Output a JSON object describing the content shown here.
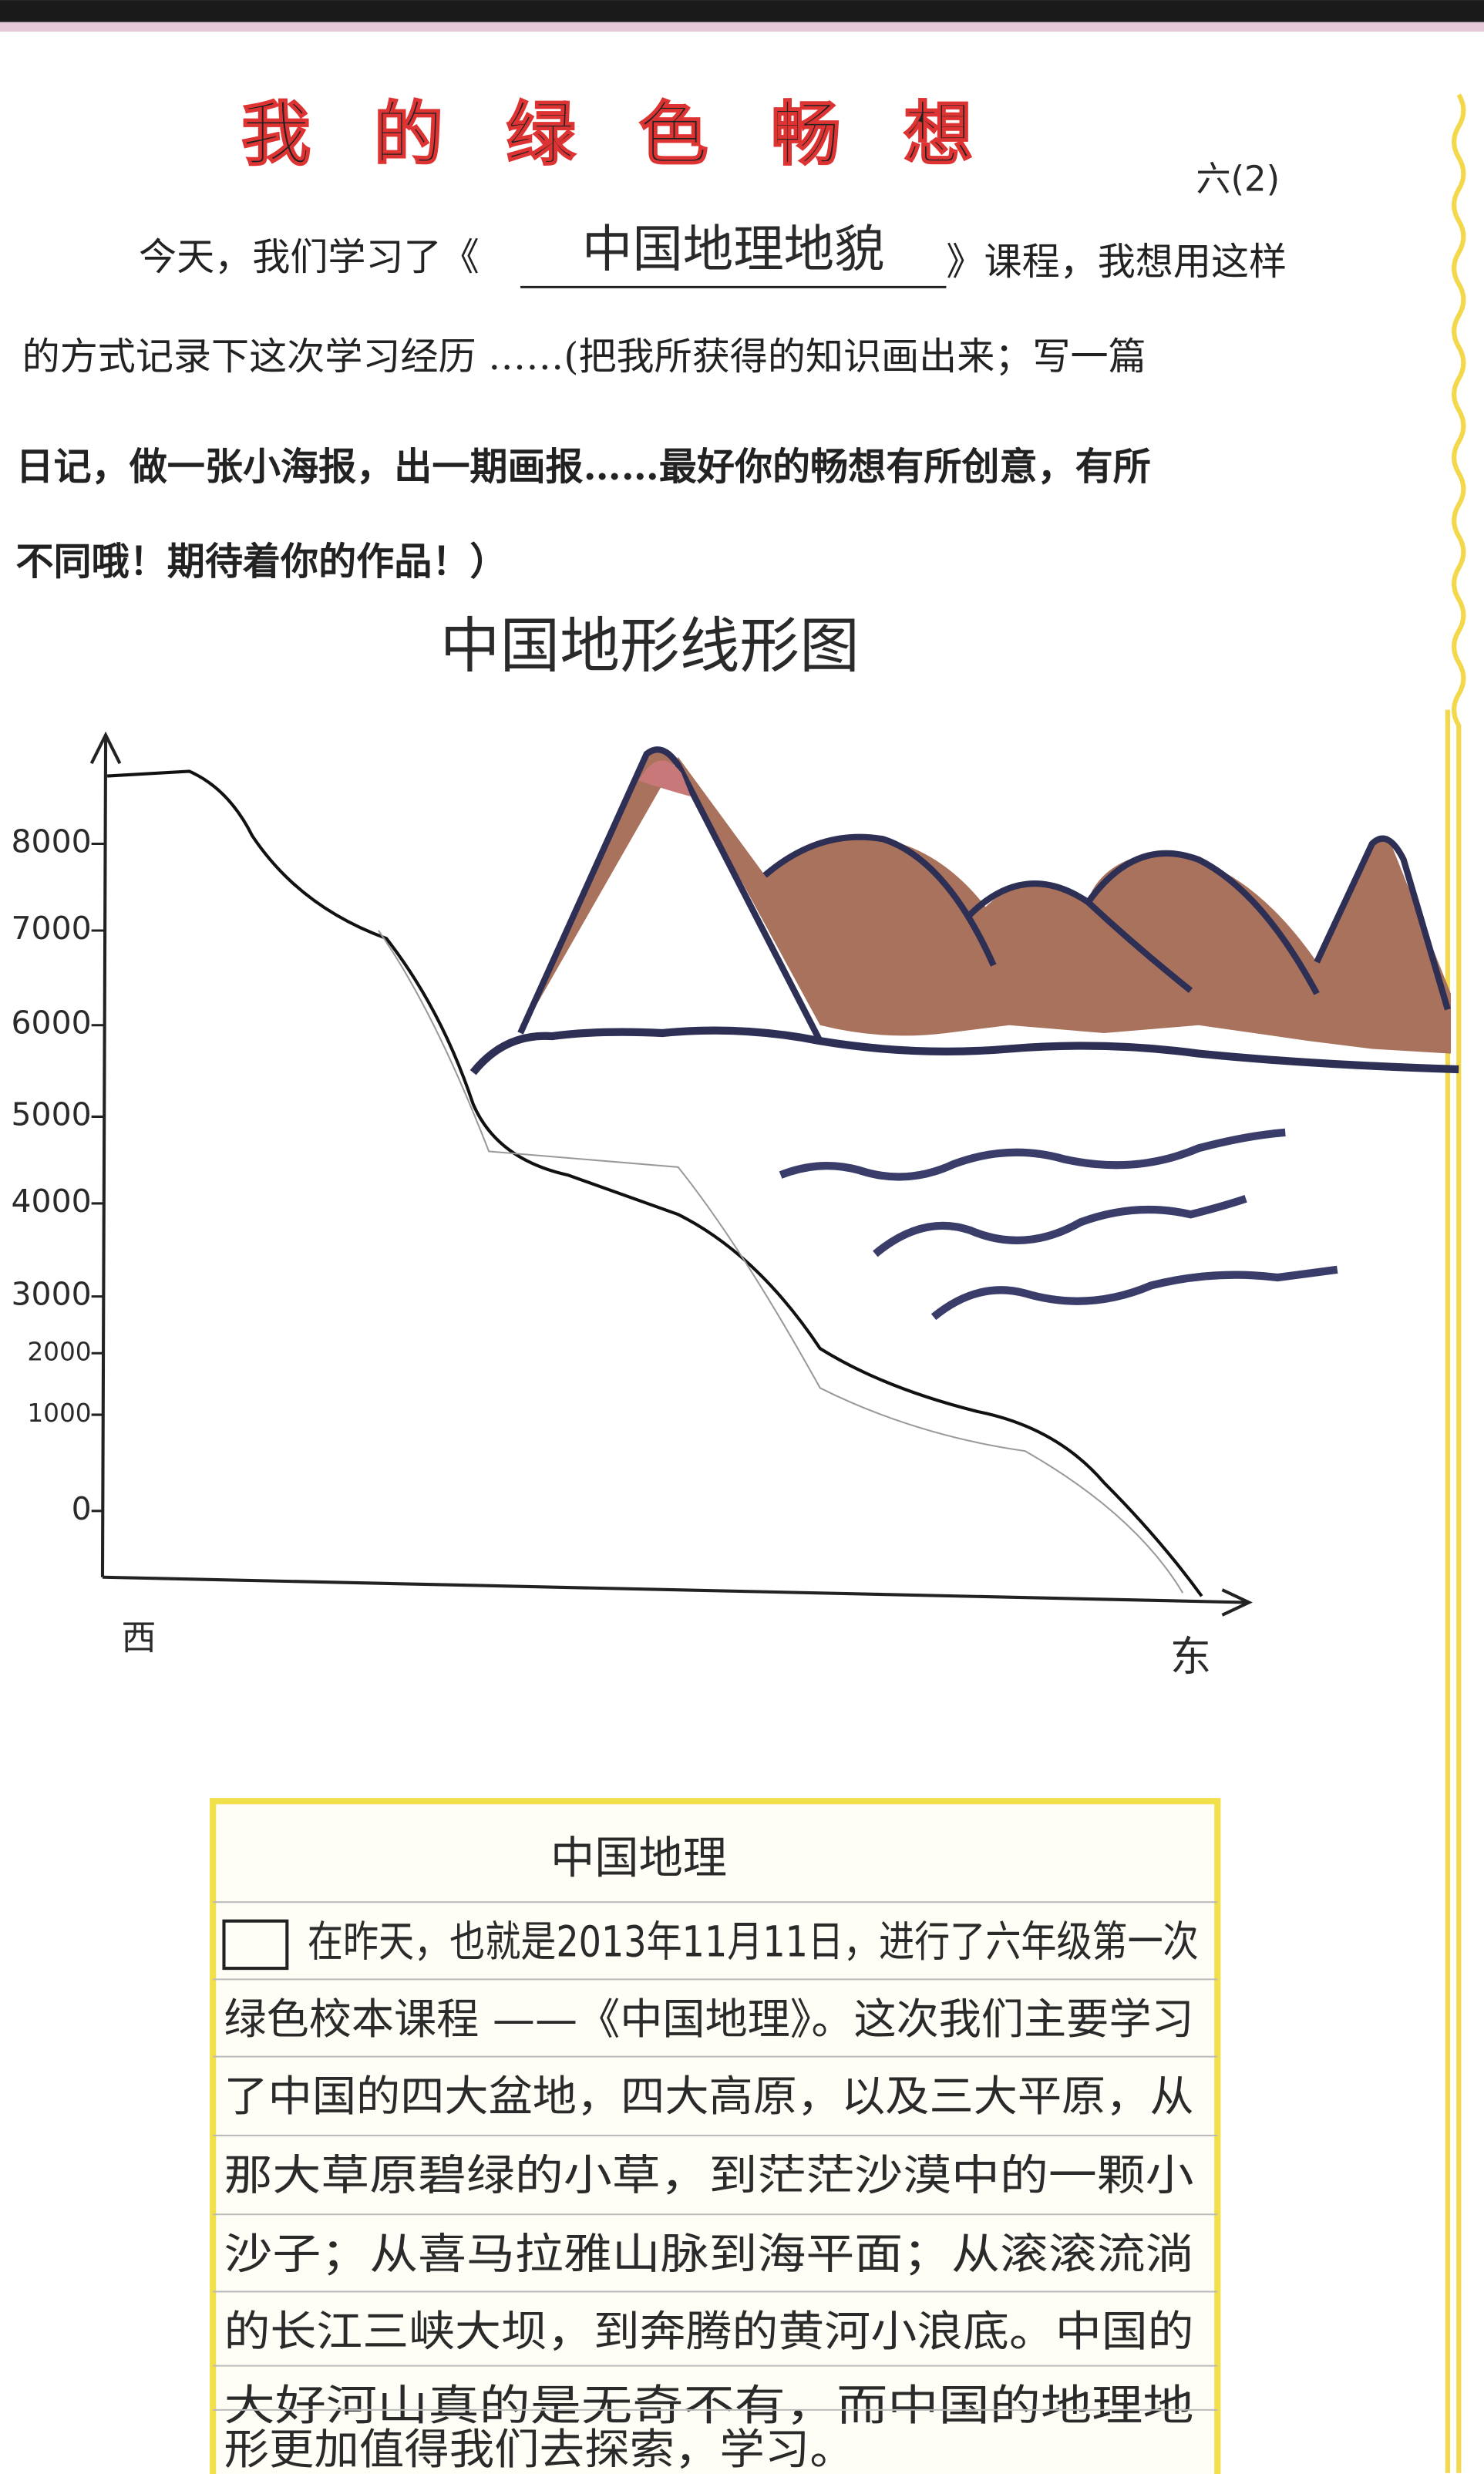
{
  "header": {
    "title": "我的绿色畅想",
    "class_mark": "六(2)"
  },
  "intro": {
    "line1_before": "今天，我们学习了《",
    "course": "中国地理地貌",
    "line1_after": "》课程，我想用这样",
    "lines": [
      "的方式记录下这次学习经历 ……(把我所获得的知识画出来；写一篇",
      "日记，做一张小海报，出一期画报……最好你的畅想有所创意，有所",
      "不同哦！期待着你的作品！）"
    ]
  },
  "drawing": {
    "title": "中国地形线形图",
    "y_labels": [
      8000,
      7000,
      6000,
      5000,
      4000,
      3000,
      2000,
      1000,
      0
    ],
    "west": "西",
    "east": "东"
  },
  "essay": {
    "title": "中国地理",
    "lines": [
      "在昨天，也就是2013年11月11日，进行了六年级第一次",
      "绿色校本课程 ——《中国地理》。这次我们主要学习",
      "了中国的四大盆地，四大高原，以及三大平原，从",
      "那大草原碧绿的小草，到茫茫沙漠中的一颗小",
      "沙子；从喜马拉雅山脉到海平面；从滚滚流淌",
      "的长江三峡大坝，到奔腾的黄河小浪底。中国的",
      "大好河山真的是无奇不有，而中国的地理地",
      "形更加值得我们去探索，学习。"
    ]
  }
}
